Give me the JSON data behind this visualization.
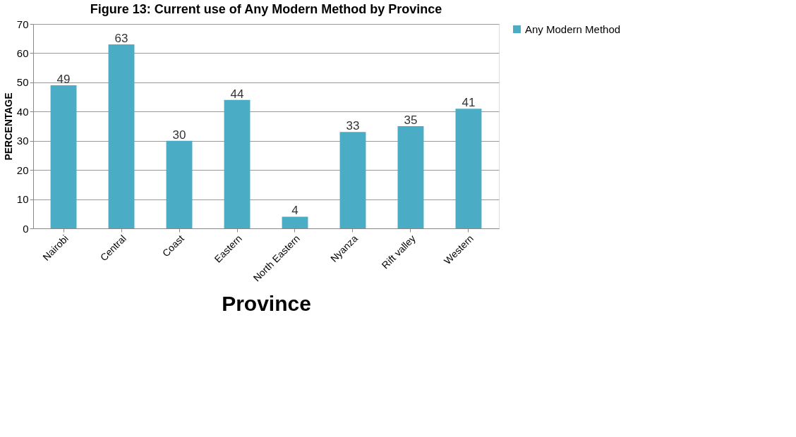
{
  "chart_data": {
    "type": "bar",
    "title": "Figure 13: Current use of Any Modern Method by Province",
    "xlabel": "Province",
    "ylabel": "PERCENTAGE",
    "categories": [
      "Nairobi",
      "Central",
      "Coast",
      "Eastern",
      "North Eastern",
      "Nyanza",
      "Rift valley",
      "Western"
    ],
    "series": [
      {
        "name": "Any Modern Method",
        "color": "#4bacc6",
        "values": [
          49,
          63,
          30,
          44,
          4,
          33,
          35,
          41
        ]
      }
    ],
    "ylim": [
      0,
      70
    ],
    "yticks": [
      0,
      10,
      20,
      30,
      40,
      50,
      60,
      70
    ],
    "grid": "y",
    "legend": "right",
    "data_labels": true
  }
}
